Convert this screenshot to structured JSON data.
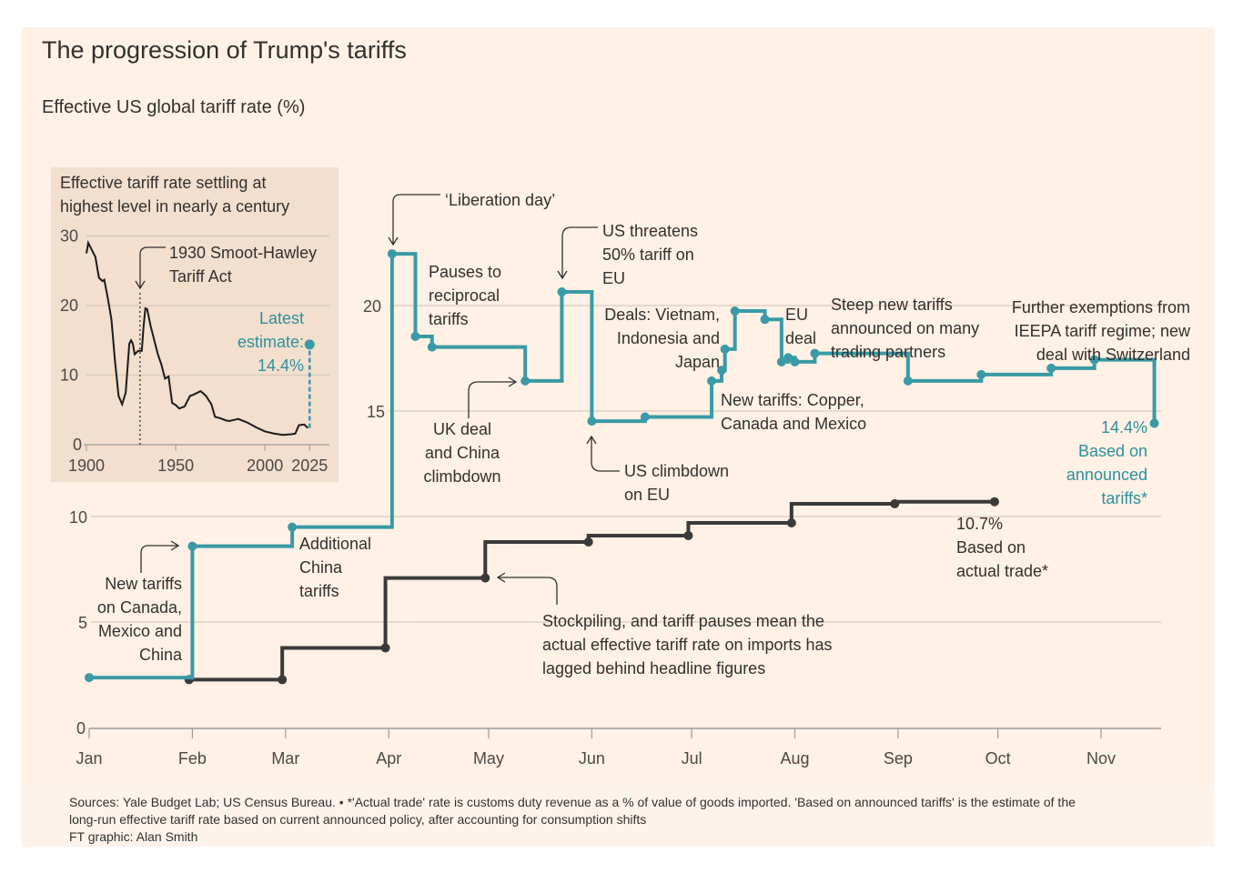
{
  "title": "The progression of Trump's tariffs",
  "subtitle": "Effective US global tariff rate (%)",
  "colors": {
    "announced": "#3a9aa6",
    "actual": "#3a3a3a",
    "background": "#fff1e5",
    "inset_background": "#f2dfcd",
    "teal_text": "#2f8f9c"
  },
  "chart_data": [
    {
      "type": "line",
      "step": true,
      "xaxis_type": "date",
      "ylim": [
        0,
        23
      ],
      "yticks": [
        0,
        5,
        10,
        15,
        20
      ],
      "xticks": [
        "Jan",
        "Feb",
        "Mar",
        "Apr",
        "May",
        "Jun",
        "Jul",
        "Aug",
        "Sep",
        "Oct",
        "Nov"
      ],
      "grid": true,
      "series": [
        {
          "name": "Based on announced tariffs*",
          "end_label": "14.4%",
          "points": [
            [
              "2025-01-01",
              2.4
            ],
            [
              "2025-02-01",
              8.6
            ],
            [
              "2025-03-03",
              9.5
            ],
            [
              "2025-04-02",
              22.4
            ],
            [
              "2025-04-09",
              18.5
            ],
            [
              "2025-04-14",
              18.0
            ],
            [
              "2025-05-12",
              16.4
            ],
            [
              "2025-05-23",
              20.6
            ],
            [
              "2025-06-01",
              14.5
            ],
            [
              "2025-06-17",
              14.7
            ],
            [
              "2025-07-07",
              16.4
            ],
            [
              "2025-07-10",
              16.9
            ],
            [
              "2025-07-11",
              17.9
            ],
            [
              "2025-07-14",
              19.7
            ],
            [
              "2025-07-23",
              19.3
            ],
            [
              "2025-07-28",
              17.3
            ],
            [
              "2025-07-30",
              17.5
            ],
            [
              "2025-08-01",
              17.3
            ],
            [
              "2025-08-07",
              17.7
            ],
            [
              "2025-09-04",
              16.4
            ],
            [
              "2025-09-26",
              16.7
            ],
            [
              "2025-10-17",
              17.0
            ],
            [
              "2025-10-30",
              17.4
            ],
            [
              "2025-11-17",
              14.4
            ]
          ]
        },
        {
          "name": "Based on actual trade*",
          "end_label": "10.7%",
          "points": [
            [
              "2025-01-31",
              2.3
            ],
            [
              "2025-02-28",
              2.3
            ],
            [
              "2025-03-31",
              3.8
            ],
            [
              "2025-04-30",
              7.1
            ],
            [
              "2025-05-31",
              8.8
            ],
            [
              "2025-06-30",
              9.1
            ],
            [
              "2025-07-31",
              9.7
            ],
            [
              "2025-08-31",
              10.6
            ],
            [
              "2025-09-30",
              10.7
            ]
          ]
        }
      ],
      "annotations": {
        "liberation": [
          "‘Liberation day’"
        ],
        "us_threatens": [
          "US threatens",
          "50% tariff on",
          "EU"
        ],
        "pauses": [
          "Pauses to",
          "reciprocal",
          "tariffs"
        ],
        "uk_deal": [
          "UK deal",
          "and China",
          "climbdown"
        ],
        "deals": [
          "Deals: Vietnam,",
          "Indonesia and",
          "Japan"
        ],
        "eu_deal": [
          "EU",
          "deal"
        ],
        "steep": [
          "Steep new tariffs",
          "announced on many",
          "trading partners"
        ],
        "further": [
          "Further exemptions from",
          "IEEPA tariff regime; new",
          "deal with Switzerland"
        ],
        "copper": [
          "New tariffs: Copper,",
          "Canada and Mexico"
        ],
        "climbdown_eu": [
          "US climbdown",
          "on EU"
        ],
        "announced_label": [
          "14.4%",
          "Based on",
          "announced",
          "tariffs*"
        ],
        "actual_label": [
          "10.7%",
          "Based on",
          "actual trade*"
        ],
        "additional_china": [
          "Additional",
          "China",
          "tariffs"
        ],
        "new_tariffs_canada": [
          "New tariffs",
          "on Canada,",
          "Mexico and",
          "China"
        ],
        "stockpiling": [
          "Stockpiling, and tariff pauses mean the",
          "actual effective tariff rate on imports has",
          "lagged behind headline figures"
        ]
      }
    },
    {
      "type": "line",
      "title": [
        "Effective tariff rate settling at",
        "highest level in nearly a century"
      ],
      "xlim": [
        1900,
        2025
      ],
      "xticks": [
        1900,
        1950,
        2000,
        2025
      ],
      "ylim": [
        0,
        30
      ],
      "yticks": [
        0,
        10,
        20,
        30
      ],
      "grid": true,
      "x": [
        1900,
        1901,
        1903,
        1905,
        1907,
        1909,
        1910,
        1912,
        1914,
        1916,
        1918,
        1920,
        1922,
        1924,
        1925,
        1926,
        1927,
        1929,
        1931,
        1932,
        1933,
        1934,
        1936,
        1938,
        1940,
        1942,
        1944,
        1946,
        1948,
        1950,
        1952,
        1955,
        1958,
        1960,
        1964,
        1967,
        1970,
        1972,
        1975,
        1978,
        1980,
        1985,
        1990,
        1995,
        2000,
        2005,
        2010,
        2015,
        2017,
        2019,
        2022,
        2024
      ],
      "y": [
        27.5,
        29,
        28,
        27,
        24,
        23.5,
        23.7,
        21,
        18,
        12,
        7,
        5.8,
        7.5,
        14.5,
        15,
        14.5,
        13,
        13.5,
        13.5,
        17,
        19.6,
        19.5,
        17,
        15,
        13,
        11.5,
        9.5,
        9.8,
        6,
        5.7,
        5.2,
        5.5,
        7,
        7.2,
        7.7,
        7,
        5.8,
        4,
        3.8,
        3.5,
        3.4,
        3.7,
        3.2,
        2.5,
        1.9,
        1.6,
        1.4,
        1.5,
        1.6,
        2.8,
        2.9,
        2.4
      ],
      "latest": {
        "year": 2025,
        "value": 14.4,
        "label": [
          "Latest",
          "estimate:",
          "14.4%"
        ]
      },
      "annotation": [
        "1930 Smoot-Hawley",
        "Tariff Act"
      ],
      "annotation_year": 1930
    }
  ],
  "footer": {
    "lines": [
      "Sources: Yale Budget Lab; US Census Bureau. • *'Actual trade' rate is customs duty revenue as a % of value of goods imported. 'Based on announced tariffs' is the estimate of the",
      "long-run effective tariff rate based on current announced policy, after accounting for consumption shifts",
      "FT graphic: Alan Smith"
    ]
  }
}
